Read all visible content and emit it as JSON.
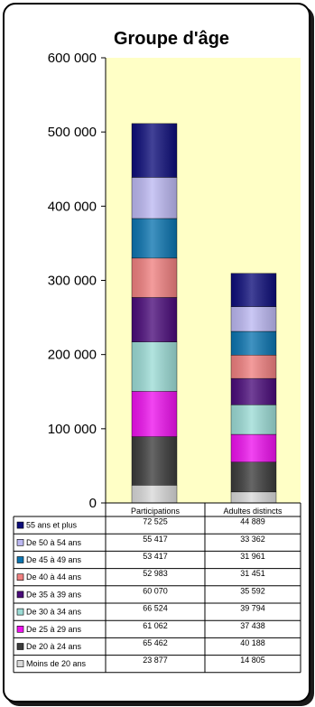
{
  "chart_data": {
    "type": "bar",
    "stacked": true,
    "title": "Groupe d'âge",
    "categories": [
      "Participations",
      "Adultes distincts"
    ],
    "ylim": [
      0,
      600000
    ],
    "yticks": [
      "0",
      "100 000",
      "200 000",
      "300 000",
      "400 000",
      "500 000",
      "600 000"
    ],
    "ytick_values": [
      0,
      100000,
      200000,
      300000,
      400000,
      500000,
      600000
    ],
    "grid": false,
    "plot_background": "#ffffc6",
    "legend": "data-table-bottom",
    "series": [
      {
        "name": "Moins de 20 ans",
        "color": "#d9d9d9",
        "values": [
          23877,
          14805
        ],
        "labels": [
          "23 877",
          "14 805"
        ]
      },
      {
        "name": "De 20 à 24 ans",
        "color": "#3b3b3b",
        "values": [
          65462,
          40188
        ],
        "labels": [
          "65 462",
          "40 188"
        ]
      },
      {
        "name": "De 25 à 29 ans",
        "color": "#ee11ee",
        "values": [
          61062,
          37438
        ],
        "labels": [
          "61 062",
          "37 438"
        ]
      },
      {
        "name": "De 30 à 34 ans",
        "color": "#9cdcd6",
        "values": [
          66524,
          39794
        ],
        "labels": [
          "66 524",
          "39 794"
        ]
      },
      {
        "name": "De 35 à 39 ans",
        "color": "#4a0b7a",
        "values": [
          60070,
          35592
        ],
        "labels": [
          "60 070",
          "35 592"
        ]
      },
      {
        "name": "De 40 à 44 ans",
        "color": "#f08080",
        "values": [
          52983,
          31451
        ],
        "labels": [
          "52 983",
          "31 451"
        ]
      },
      {
        "name": "De 45 à 49 ans",
        "color": "#0b74b0",
        "values": [
          53417,
          31961
        ],
        "labels": [
          "53 417",
          "31 961"
        ]
      },
      {
        "name": "De 50 à 54 ans",
        "color": "#bcb8f2",
        "values": [
          55417,
          33362
        ],
        "labels": [
          "55 417",
          "33 362"
        ]
      },
      {
        "name": "55 ans et plus",
        "color": "#0d0d7a",
        "values": [
          72525,
          44889
        ],
        "labels": [
          "72 525",
          "44 889"
        ]
      }
    ]
  }
}
